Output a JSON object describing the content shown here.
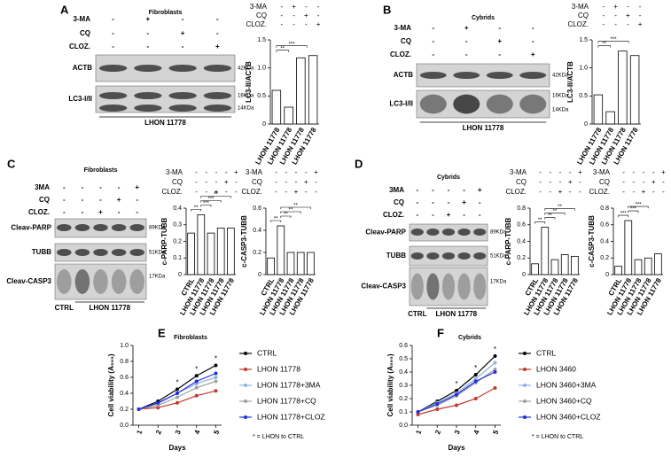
{
  "blots": [
    {
      "panel": "A",
      "title": "Fibroblasts",
      "rows": [
        {
          "label": "3-MA",
          "marks": [
            "-",
            "+",
            "-",
            "-"
          ]
        },
        {
          "label": "CQ",
          "marks": [
            "-",
            "-",
            "+",
            "-"
          ]
        },
        {
          "label": "CLOZ.",
          "marks": [
            "-",
            "-",
            "-",
            "+"
          ]
        }
      ],
      "bands": [
        {
          "label": "ACTB",
          "kda": [
            "42KDa"
          ]
        },
        {
          "label": "LC3-I/II",
          "kda": [
            "16KDa",
            "14KDa"
          ]
        }
      ],
      "footer": [
        "LHON 11778"
      ]
    },
    {
      "panel": "B",
      "title": "Cybrids",
      "rows": [
        {
          "label": "3-MA",
          "marks": [
            "-",
            "+",
            "-",
            "-"
          ]
        },
        {
          "label": "CQ",
          "marks": [
            "-",
            "-",
            "+",
            "-"
          ]
        },
        {
          "label": "CLOZ.",
          "marks": [
            "-",
            "-",
            "-",
            "+"
          ]
        }
      ],
      "bands": [
        {
          "label": "ACTB",
          "kda": [
            "42KDa"
          ]
        },
        {
          "label": "LC3-I/II",
          "kda": [
            "16KDa",
            "14KDa"
          ]
        }
      ],
      "footer": [
        "LHON 11778"
      ]
    },
    {
      "panel": "C",
      "title": "Fibroblasts",
      "rows": [
        {
          "label": "3MA",
          "marks": [
            "-",
            "-",
            "-",
            "-",
            "+"
          ]
        },
        {
          "label": "CQ",
          "marks": [
            "-",
            "-",
            "-",
            "+",
            "-"
          ]
        },
        {
          "label": "CLOZ.",
          "marks": [
            "-",
            "-",
            "+",
            "-",
            "-"
          ]
        }
      ],
      "bands": [
        {
          "label": "Cleav-PARP",
          "kda": [
            "89KDa"
          ]
        },
        {
          "label": "TUBB",
          "kda": [
            "51KDa"
          ]
        },
        {
          "label": "Cleav-CASP3",
          "kda": [
            "17KDa"
          ]
        }
      ],
      "footer": [
        "CTRL",
        "LHON 11778"
      ]
    },
    {
      "panel": "D",
      "title": "Cybrids",
      "rows": [
        {
          "label": "3MA",
          "marks": [
            "-",
            "-",
            "-",
            "-",
            "+"
          ]
        },
        {
          "label": "CQ",
          "marks": [
            "-",
            "-",
            "-",
            "+",
            "-"
          ]
        },
        {
          "label": "CLOZ.",
          "marks": [
            "-",
            "-",
            "+",
            "-",
            "-"
          ]
        }
      ],
      "bands": [
        {
          "label": "Cleav-PARP",
          "kda": [
            "89KDa"
          ]
        },
        {
          "label": "TUBB",
          "kda": [
            "51KDa"
          ]
        },
        {
          "label": "Cleav-CASP3",
          "kda": [
            "17KDa"
          ]
        }
      ],
      "footer": [
        "CTRL",
        "LHON 11778"
      ]
    }
  ],
  "chart_data": [
    {
      "type": "bar",
      "y_label": "LC3-II/ACTB",
      "categories": [
        "LHON 11778",
        "LHON 11778",
        "LHON 11778",
        "LHON 11778"
      ],
      "values": [
        0.6,
        0.3,
        1.18,
        1.22
      ],
      "ylim": [
        0,
        1.5
      ],
      "yticks": [
        0,
        0.5,
        {
          "value": 1,
          "label": "1.0"
        },
        1.5
      ],
      "treatments": [
        {
          "label": "3-MA",
          "marks": [
            "-",
            "+",
            "-",
            "-"
          ]
        },
        {
          "label": "CQ",
          "marks": [
            "-",
            "-",
            "+",
            "-"
          ]
        },
        {
          "label": "CLOZ.",
          "marks": [
            "-",
            "-",
            "-",
            "+"
          ]
        }
      ],
      "annotations": [
        "**",
        "***"
      ]
    },
    {
      "type": "bar",
      "y_label": "LC3-II/ACTB",
      "categories": [
        "LHON 11778",
        "LHON 11778",
        "LHON 11778",
        "LHON 11778"
      ],
      "values": [
        0.52,
        0.22,
        1.3,
        1.22
      ],
      "ylim": [
        0,
        1.5
      ],
      "yticks": [
        0,
        0.5,
        {
          "value": 1,
          "label": "1.0"
        },
        1.5
      ],
      "treatments": [
        {
          "label": "3-MA",
          "marks": [
            "-",
            "+",
            "-",
            "-"
          ]
        },
        {
          "label": "CQ",
          "marks": [
            "-",
            "-",
            "+",
            "-"
          ]
        },
        {
          "label": "CLOZ.",
          "marks": [
            "-",
            "-",
            "-",
            "+"
          ]
        }
      ],
      "annotations": [
        "**",
        "***"
      ]
    },
    {
      "type": "bar",
      "y_label": "c-PARP-TUBB",
      "categories": [
        "CTRL",
        "LHON 11778",
        "LHON 11778",
        "LHON 11778",
        "LHON 11778"
      ],
      "values": [
        0.25,
        0.36,
        0.25,
        0.28,
        0.28
      ],
      "ylim": [
        0,
        0.4
      ],
      "yticks": [
        0,
        0.1,
        0.2,
        0.3,
        0.4
      ],
      "treatments": [
        {
          "label": "3-MA",
          "marks": [
            "-",
            "-",
            "-",
            "-",
            "+"
          ]
        },
        {
          "label": "CQ",
          "marks": [
            "-",
            "-",
            "-",
            "+",
            "-"
          ]
        },
        {
          "label": "CLOZ.",
          "marks": [
            "-",
            "-",
            "+",
            "-",
            "-"
          ]
        }
      ],
      "annotations": [
        "**",
        "***",
        "***",
        "**"
      ]
    },
    {
      "type": "bar",
      "y_label": "c-CASP3-TUBB",
      "categories": [
        "CTRL",
        "LHON 11778",
        "LHON 11778",
        "LHON 11778",
        "LHON 11778"
      ],
      "values": [
        0.15,
        0.44,
        0.2,
        0.2,
        0.2
      ],
      "ylim": [
        0,
        0.6
      ],
      "yticks": [
        0,
        0.2,
        0.4,
        0.6
      ],
      "treatments": [
        {
          "label": "3-MA",
          "marks": [
            "-",
            "-",
            "-",
            "-",
            "+"
          ]
        },
        {
          "label": "CQ",
          "marks": [
            "-",
            "-",
            "-",
            "+",
            "-"
          ]
        },
        {
          "label": "CLOZ.",
          "marks": [
            "-",
            "-",
            "+",
            "-",
            "-"
          ]
        }
      ],
      "annotations": [
        "**",
        "**",
        "**",
        "**"
      ]
    },
    {
      "type": "bar",
      "y_label": "c-PARP-TUBB",
      "categories": [
        "CTRL",
        "LHON 11778",
        "LHON 11778",
        "LHON 11778",
        "LHON 11778"
      ],
      "values": [
        0.13,
        0.57,
        0.18,
        0.24,
        0.22
      ],
      "ylim": [
        0,
        0.8
      ],
      "yticks": [
        0,
        0.2,
        0.4,
        0.6,
        0.8
      ],
      "treatments": [
        {
          "label": "3-MA",
          "marks": [
            "-",
            "-",
            "-",
            "-",
            "+"
          ]
        },
        {
          "label": "CQ",
          "marks": [
            "-",
            "-",
            "-",
            "+",
            "-"
          ]
        },
        {
          "label": "CLOZ.",
          "marks": [
            "-",
            "-",
            "+",
            "-",
            "-"
          ]
        }
      ],
      "annotations": [
        "**",
        "**",
        "**",
        "**"
      ]
    },
    {
      "type": "bar",
      "y_label": "c-CASP3-TUBB",
      "categories": [
        "CTRL",
        "LHON 11778",
        "LHON 11778",
        "LHON 11778",
        "LHON 11778"
      ],
      "values": [
        0.1,
        0.65,
        0.18,
        0.2,
        0.25
      ],
      "ylim": [
        0,
        0.8
      ],
      "yticks": [
        0,
        0.2,
        0.4,
        0.6,
        0.8
      ],
      "treatments": [
        {
          "label": "3-MA",
          "marks": [
            "-",
            "-",
            "-",
            "-",
            "+"
          ]
        },
        {
          "label": "CQ",
          "marks": [
            "-",
            "-",
            "-",
            "+",
            "-"
          ]
        },
        {
          "label": "CLOZ.",
          "marks": [
            "-",
            "-",
            "+",
            "-",
            "-"
          ]
        }
      ],
      "annotations": [
        "***",
        "***",
        "***"
      ]
    },
    {
      "type": "line",
      "panel": "E",
      "title": "Fibroblasts",
      "x_label": "Days",
      "y_label": "Cell viability (A₅₉₅)",
      "x": [
        1,
        2,
        3,
        4,
        5
      ],
      "xlim": [
        0.7,
        5.3
      ],
      "xticks": [
        1,
        2,
        3,
        4,
        5
      ],
      "ylim": [
        0,
        1
      ],
      "yticks": [
        {
          "value": 0,
          "label": "0.0"
        },
        0.2,
        0.4,
        0.6,
        0.8,
        {
          "value": 1,
          "label": "1.0"
        }
      ],
      "series": [
        {
          "name": "CTRL",
          "color": "#000000",
          "values": [
            0.2,
            0.3,
            0.45,
            0.62,
            0.75
          ]
        },
        {
          "name": "LHON 11778",
          "color": "#c0392b",
          "values": [
            0.2,
            0.22,
            0.28,
            0.37,
            0.43
          ]
        },
        {
          "name": "LHON 11778+3MA",
          "color": "#8fb3dc",
          "values": [
            0.2,
            0.27,
            0.4,
            0.52,
            0.6
          ]
        },
        {
          "name": "LHON 11778+CQ",
          "color": "#a0a0a0",
          "values": [
            0.2,
            0.25,
            0.35,
            0.47,
            0.55
          ]
        },
        {
          "name": "LHON 11778+CLOZ",
          "color": "#1f2ee0",
          "values": [
            0.2,
            0.28,
            0.4,
            0.55,
            0.65
          ]
        }
      ],
      "annotations": [
        "*",
        "*",
        "*"
      ],
      "note": "* = LHON to CTRL"
    },
    {
      "type": "line",
      "panel": "F",
      "title": "Cybrids",
      "x_label": "Days",
      "y_label": "Cell viability (A₅₉₅)",
      "x": [
        1,
        2,
        3,
        4,
        5
      ],
      "xlim": [
        0.7,
        5.3
      ],
      "xticks": [
        1,
        2,
        3,
        4,
        5
      ],
      "ylim": [
        0,
        0.6
      ],
      "yticks": [
        {
          "value": 0,
          "label": "0.0"
        },
        0.1,
        0.2,
        0.3,
        0.4,
        0.5,
        0.6
      ],
      "series": [
        {
          "name": "CTRL",
          "color": "#000000",
          "values": [
            0.1,
            0.18,
            0.26,
            0.38,
            0.52
          ]
        },
        {
          "name": "LHON 3460",
          "color": "#c0392b",
          "values": [
            0.08,
            0.12,
            0.15,
            0.2,
            0.28
          ]
        },
        {
          "name": "LHON 3460+3MA",
          "color": "#8fb3dc",
          "values": [
            0.1,
            0.17,
            0.24,
            0.35,
            0.47
          ]
        },
        {
          "name": "LHON 3460+CQ",
          "color": "#a0a0a0",
          "values": [
            0.1,
            0.15,
            0.22,
            0.32,
            0.42
          ]
        },
        {
          "name": "LHON 3460+CLOZ",
          "color": "#1f2ee0",
          "values": [
            0.1,
            0.16,
            0.23,
            0.33,
            0.4
          ]
        }
      ],
      "annotations": [
        "*",
        "*",
        "*"
      ],
      "note": "* = LHON to CTRL"
    }
  ]
}
